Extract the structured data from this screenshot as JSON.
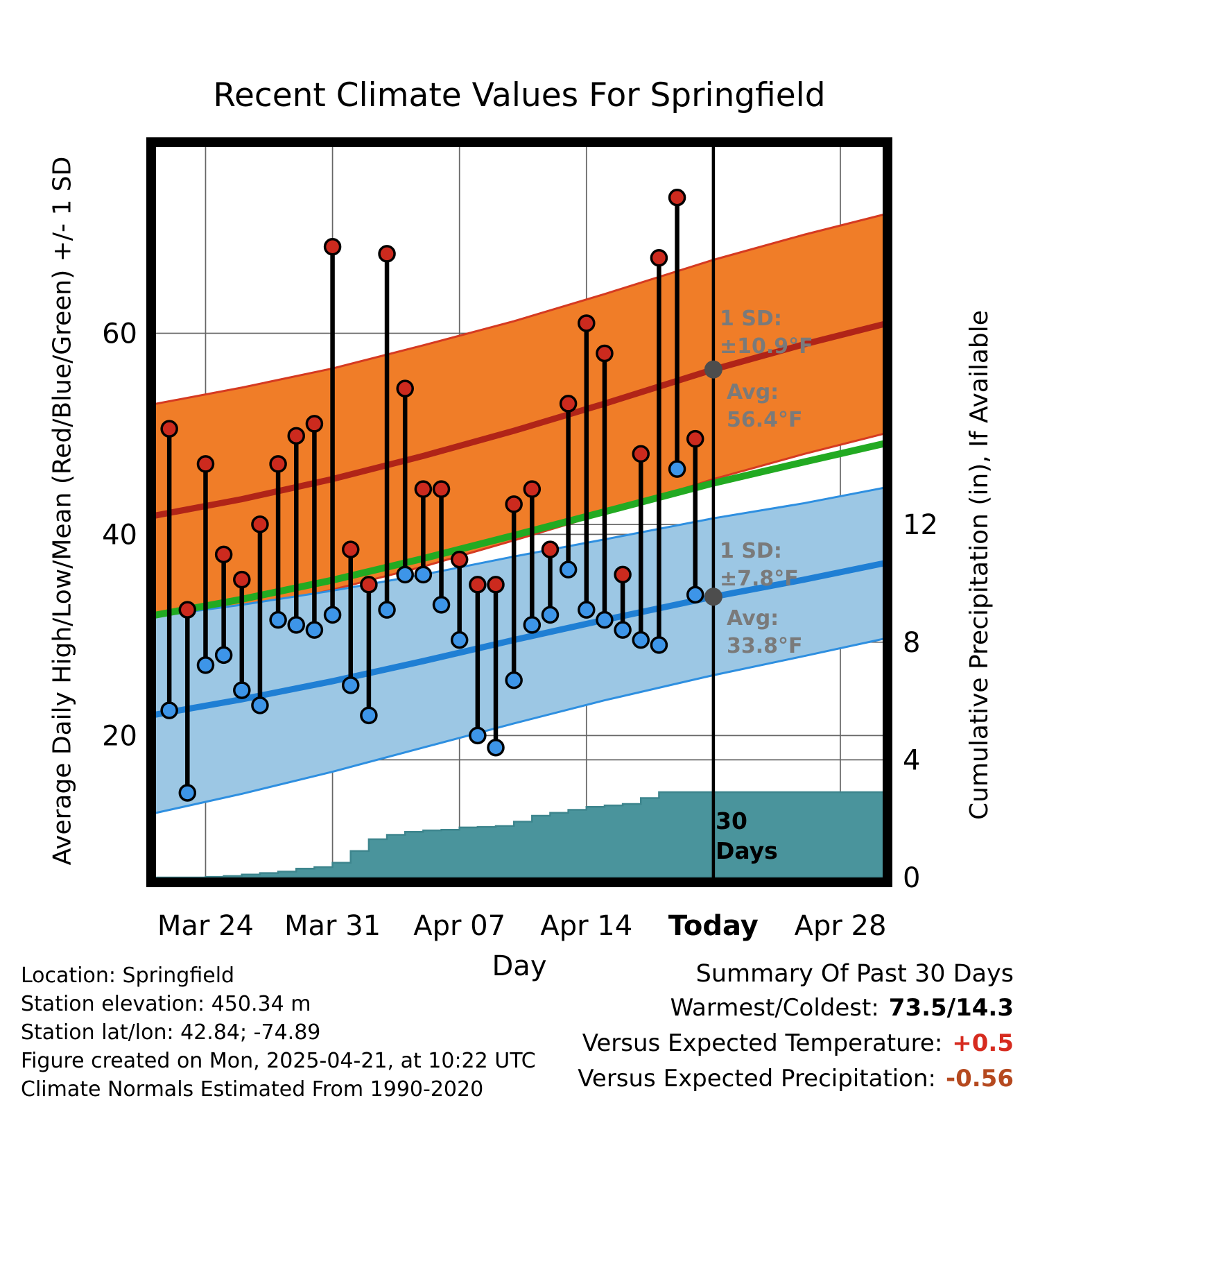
{
  "title": "Recent Climate Values For Springfield",
  "axes": {
    "xlabel": "Day",
    "ylabel_left": "Average Daily High/Low/Mean (Red/Blue/Green) +/- 1 SD",
    "ylabel_right": "Cumulative Precipitation (in), If Available"
  },
  "annotations": {
    "high_sd_label": "1 SD:",
    "high_sd_value": "±10.9°F",
    "high_avg_label": "Avg:",
    "high_avg_value": "56.4°F",
    "low_sd_label": "1 SD:",
    "low_sd_value": "±7.8°F",
    "low_avg_label": "Avg:",
    "low_avg_value": "33.8°F",
    "window_line1": "30",
    "window_line2": "Days"
  },
  "footer": {
    "location": "Location: Springfield",
    "elevation": "Station elevation: 450.34 m",
    "latlon": "Station lat/lon: 42.84; -74.89",
    "created": "Figure created on Mon, 2025-04-21, at 10:22 UTC",
    "normals": "Climate Normals Estimated From 1990-2020"
  },
  "summary": {
    "heading": "Summary Of Past 30 Days",
    "warmest_coldest_label": "Warmest/Coldest:",
    "warmest_coldest_value": "73.5/14.3",
    "vs_temp_label": "Versus Expected Temperature:",
    "vs_temp_value": "+0.5",
    "vs_precip_label": "Versus Expected Precipitation:",
    "vs_precip_value": "-0.56"
  },
  "colors": {
    "high_band_fill": "#f07d28",
    "high_band_edge": "#d53a21",
    "high_mean_line": "#b02418",
    "low_band_fill": "#9cc7e4",
    "low_band_edge": "#2e8fe0",
    "low_mean_line": "#1f7fd4",
    "mean_line": "#22aa22",
    "precip_fill": "#4a949c",
    "precip_edge": "#3d858d",
    "high_dot": "#cc2a1e",
    "low_dot": "#3d95e8",
    "stem": "#000000",
    "today_line": "#000000",
    "avg_marker": "#4d4d4d",
    "grid": "#666666",
    "annotation_text": "#7a7a7a",
    "positive_temp_value": "#d62b1f",
    "negative_precip_value": "#b5491f"
  },
  "chart_data": {
    "type": "combo",
    "layers": [
      "band",
      "line",
      "scatter-range",
      "step-area"
    ],
    "title": "Recent Climate Values For Springfield",
    "xlabel": "Day",
    "ylabel_left": "Average Daily High/Low/Mean (Red/Blue/Green) +/- 1 SD",
    "ylabel_right": "Cumulative Precipitation (in), If Available",
    "x_domain_days": [
      0,
      40.6
    ],
    "ylim_left": [
      5.4,
      79.0
    ],
    "ylim_right": [
      0,
      25
    ],
    "today_day": 31,
    "avg_high": 56.4,
    "avg_low": 33.8,
    "high_sd_today": 10.9,
    "low_sd_today": 7.8,
    "grid": true,
    "x_ticks": [
      {
        "label": "Mar 24",
        "day": 3,
        "bold": false
      },
      {
        "label": "Mar 31",
        "day": 10,
        "bold": false
      },
      {
        "label": "Apr 07",
        "day": 17,
        "bold": false
      },
      {
        "label": "Apr 14",
        "day": 24,
        "bold": false
      },
      {
        "label": "Today",
        "day": 31,
        "bold": true
      },
      {
        "label": "Apr 28",
        "day": 38,
        "bold": false
      }
    ],
    "y_ticks_left": [
      20,
      40,
      60
    ],
    "y_ticks_right": [
      0,
      4,
      8,
      12
    ],
    "normals": {
      "days": [
        0,
        5,
        10,
        15,
        20,
        25,
        31,
        36,
        40.6
      ],
      "high_mean": [
        41.8,
        43.5,
        45.5,
        47.8,
        50.3,
        53.0,
        56.4,
        58.9,
        61.0
      ],
      "high_sd": [
        11.1,
        11.1,
        11.0,
        11.0,
        10.9,
        10.9,
        10.9,
        10.9,
        10.9
      ],
      "low_mean": [
        22.0,
        23.6,
        25.4,
        27.4,
        29.5,
        31.5,
        33.8,
        35.5,
        37.2
      ],
      "low_sd": [
        9.8,
        9.4,
        9.0,
        8.6,
        8.3,
        8.0,
        7.8,
        7.6,
        7.5
      ]
    },
    "daily": [
      {
        "date": "Mar 22",
        "day": 1,
        "high": 50.5,
        "low": 22.5
      },
      {
        "date": "Mar 23",
        "day": 2,
        "high": 32.5,
        "low": 14.3
      },
      {
        "date": "Mar 24",
        "day": 3,
        "high": 47.0,
        "low": 27.0
      },
      {
        "date": "Mar 25",
        "day": 4,
        "high": 38.0,
        "low": 28.0
      },
      {
        "date": "Mar 26",
        "day": 5,
        "high": 35.5,
        "low": 24.5
      },
      {
        "date": "Mar 27",
        "day": 6,
        "high": 41.0,
        "low": 23.0
      },
      {
        "date": "Mar 28",
        "day": 7,
        "high": 47.0,
        "low": 31.5
      },
      {
        "date": "Mar 29",
        "day": 8,
        "high": 49.8,
        "low": 31.0
      },
      {
        "date": "Mar 30",
        "day": 9,
        "high": 51.0,
        "low": 30.5
      },
      {
        "date": "Mar 31",
        "day": 10,
        "high": 68.6,
        "low": 32.0
      },
      {
        "date": "Apr 01",
        "day": 11,
        "high": 38.5,
        "low": 25.0
      },
      {
        "date": "Apr 02",
        "day": 12,
        "high": 35.0,
        "low": 22.0
      },
      {
        "date": "Apr 03",
        "day": 13,
        "high": 67.9,
        "low": 32.5
      },
      {
        "date": "Apr 04",
        "day": 14,
        "high": 54.5,
        "low": 36.0
      },
      {
        "date": "Apr 05",
        "day": 15,
        "high": 44.5,
        "low": 36.0
      },
      {
        "date": "Apr 06",
        "day": 16,
        "high": 44.5,
        "low": 33.0
      },
      {
        "date": "Apr 07",
        "day": 17,
        "high": 37.5,
        "low": 29.5
      },
      {
        "date": "Apr 08",
        "day": 18,
        "high": 35.0,
        "low": 20.0
      },
      {
        "date": "Apr 09",
        "day": 19,
        "high": 35.0,
        "low": 18.8
      },
      {
        "date": "Apr 10",
        "day": 20,
        "high": 43.0,
        "low": 25.5
      },
      {
        "date": "Apr 11",
        "day": 21,
        "high": 44.5,
        "low": 31.0
      },
      {
        "date": "Apr 12",
        "day": 22,
        "high": 38.5,
        "low": 32.0
      },
      {
        "date": "Apr 13",
        "day": 23,
        "high": 53.0,
        "low": 36.5
      },
      {
        "date": "Apr 14",
        "day": 24,
        "high": 61.0,
        "low": 32.5
      },
      {
        "date": "Apr 15",
        "day": 25,
        "high": 58.0,
        "low": 31.5
      },
      {
        "date": "Apr 16",
        "day": 26,
        "high": 36.0,
        "low": 30.5
      },
      {
        "date": "Apr 17",
        "day": 27,
        "high": 48.0,
        "low": 29.5
      },
      {
        "date": "Apr 18",
        "day": 28,
        "high": 67.5,
        "low": 29.0
      },
      {
        "date": "Apr 19",
        "day": 29,
        "high": 73.5,
        "low": 46.5
      },
      {
        "date": "Apr 20",
        "day": 30,
        "high": 49.5,
        "low": 34.0
      }
    ],
    "precip_cumulative": [
      {
        "day": 3,
        "value": 0.02
      },
      {
        "day": 4,
        "value": 0.05
      },
      {
        "day": 5,
        "value": 0.1
      },
      {
        "day": 6,
        "value": 0.15
      },
      {
        "day": 7,
        "value": 0.2
      },
      {
        "day": 8,
        "value": 0.3
      },
      {
        "day": 9,
        "value": 0.35
      },
      {
        "day": 10,
        "value": 0.5
      },
      {
        "day": 11,
        "value": 0.9
      },
      {
        "day": 12,
        "value": 1.3
      },
      {
        "day": 13,
        "value": 1.45
      },
      {
        "day": 14,
        "value": 1.55
      },
      {
        "day": 15,
        "value": 1.6
      },
      {
        "day": 16,
        "value": 1.62
      },
      {
        "day": 17,
        "value": 1.7
      },
      {
        "day": 18,
        "value": 1.72
      },
      {
        "day": 19,
        "value": 1.75
      },
      {
        "day": 20,
        "value": 1.9
      },
      {
        "day": 21,
        "value": 2.1
      },
      {
        "day": 22,
        "value": 2.2
      },
      {
        "day": 23,
        "value": 2.3
      },
      {
        "day": 24,
        "value": 2.4
      },
      {
        "day": 25,
        "value": 2.45
      },
      {
        "day": 26,
        "value": 2.5
      },
      {
        "day": 27,
        "value": 2.7
      },
      {
        "day": 28,
        "value": 2.9
      },
      {
        "day": 29,
        "value": 2.9
      },
      {
        "day": 30,
        "value": 2.9
      },
      {
        "day": 40.6,
        "value": 2.9
      }
    ]
  }
}
